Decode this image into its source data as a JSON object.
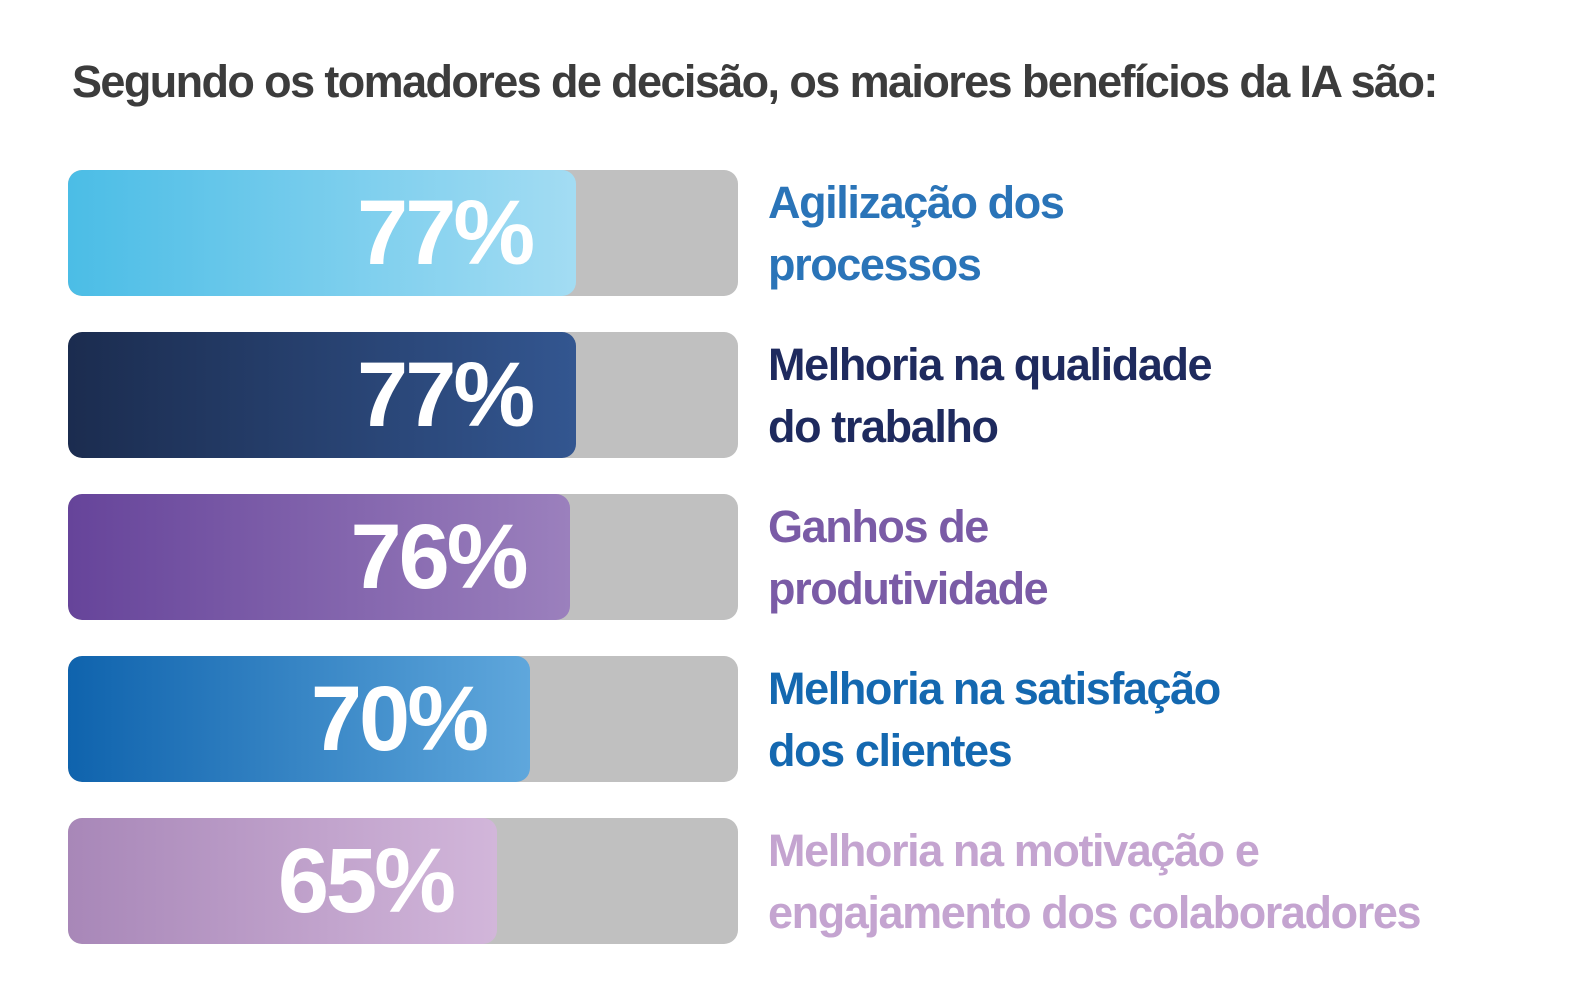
{
  "chart_data": {
    "type": "bar",
    "orientation": "horizontal",
    "title": "Segundo os tomadores de decisão, os maiores benefícios da IA são:",
    "xlim": [
      0,
      100
    ],
    "grid": false,
    "legend": "none",
    "categories": [
      "Agilização dos processos",
      "Melhoria na qualidade do trabalho",
      "Ganhos de produtividade",
      "Melhoria na satisfação dos clientes",
      "Melhoria na motivação e engajamento dos colaboradores"
    ],
    "values": [
      77,
      77,
      76,
      70,
      65
    ],
    "bars": [
      {
        "value": 77,
        "value_label": "77%",
        "label_lines": "Agilização dos\nprocessos",
        "label_color": "#2a74b8",
        "fill_start": "#4bbde6",
        "fill_end": "#a3dcf3"
      },
      {
        "value": 77,
        "value_label": "77%",
        "label_lines": "Melhoria na qualidade\ndo trabalho",
        "label_color": "#1e2a5e",
        "fill_start": "#1b2c4f",
        "fill_end": "#335690"
      },
      {
        "value": 76,
        "value_label": "76%",
        "label_lines": "Ganhos de\nprodutividade",
        "label_color": "#7a5ba6",
        "fill_start": "#66449a",
        "fill_end": "#9b80bd"
      },
      {
        "value": 70,
        "value_label": "70%",
        "label_lines": "Melhoria na satisfação\ndos clientes",
        "label_color": "#1468b0",
        "fill_start": "#0f63ad",
        "fill_end": "#5fa7dc"
      },
      {
        "value": 65,
        "value_label": "65%",
        "label_lines": "Melhoria na motivação e\nengajamento dos colaboradores",
        "label_color": "#c4a4d0",
        "fill_start": "#a887b8",
        "fill_end": "#d2b6da"
      }
    ],
    "track_color": "#c0c0c0"
  }
}
